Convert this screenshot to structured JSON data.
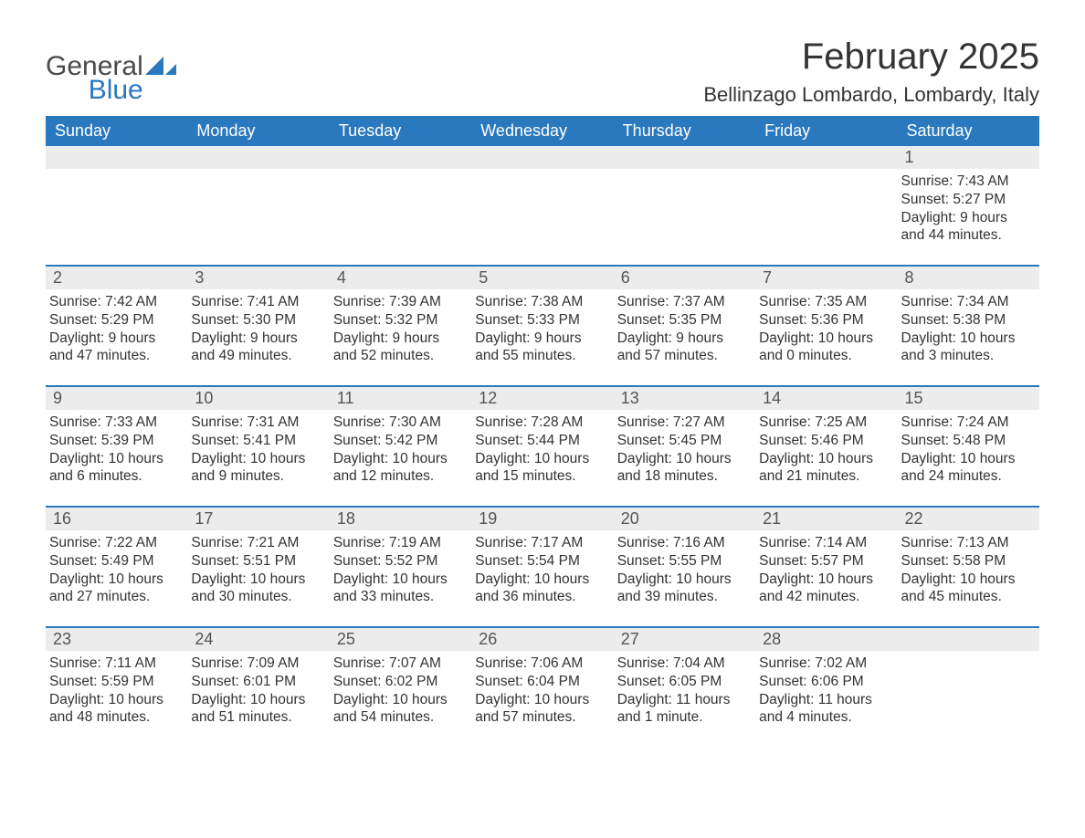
{
  "brand": {
    "general": "General",
    "blue": "Blue",
    "sail_color": "#2a78bd"
  },
  "title": "February 2025",
  "location": "Bellinzago Lombardo, Lombardy, Italy",
  "colors": {
    "header_bg": "#2a78bd",
    "header_text": "#ffffff",
    "band_bg": "#ececec",
    "week_border": "#2a78bd",
    "body_text": "#333333"
  },
  "days_of_week": [
    "Sunday",
    "Monday",
    "Tuesday",
    "Wednesday",
    "Thursday",
    "Friday",
    "Saturday"
  ],
  "labels": {
    "sunrise": "Sunrise:",
    "sunset": "Sunset:",
    "daylight": "Daylight:"
  },
  "weeks": [
    [
      null,
      null,
      null,
      null,
      null,
      null,
      {
        "n": "1",
        "sunrise": "7:43 AM",
        "sunset": "5:27 PM",
        "daylight": "9 hours and 44 minutes."
      }
    ],
    [
      {
        "n": "2",
        "sunrise": "7:42 AM",
        "sunset": "5:29 PM",
        "daylight": "9 hours and 47 minutes."
      },
      {
        "n": "3",
        "sunrise": "7:41 AM",
        "sunset": "5:30 PM",
        "daylight": "9 hours and 49 minutes."
      },
      {
        "n": "4",
        "sunrise": "7:39 AM",
        "sunset": "5:32 PM",
        "daylight": "9 hours and 52 minutes."
      },
      {
        "n": "5",
        "sunrise": "7:38 AM",
        "sunset": "5:33 PM",
        "daylight": "9 hours and 55 minutes."
      },
      {
        "n": "6",
        "sunrise": "7:37 AM",
        "sunset": "5:35 PM",
        "daylight": "9 hours and 57 minutes."
      },
      {
        "n": "7",
        "sunrise": "7:35 AM",
        "sunset": "5:36 PM",
        "daylight": "10 hours and 0 minutes."
      },
      {
        "n": "8",
        "sunrise": "7:34 AM",
        "sunset": "5:38 PM",
        "daylight": "10 hours and 3 minutes."
      }
    ],
    [
      {
        "n": "9",
        "sunrise": "7:33 AM",
        "sunset": "5:39 PM",
        "daylight": "10 hours and 6 minutes."
      },
      {
        "n": "10",
        "sunrise": "7:31 AM",
        "sunset": "5:41 PM",
        "daylight": "10 hours and 9 minutes."
      },
      {
        "n": "11",
        "sunrise": "7:30 AM",
        "sunset": "5:42 PM",
        "daylight": "10 hours and 12 minutes."
      },
      {
        "n": "12",
        "sunrise": "7:28 AM",
        "sunset": "5:44 PM",
        "daylight": "10 hours and 15 minutes."
      },
      {
        "n": "13",
        "sunrise": "7:27 AM",
        "sunset": "5:45 PM",
        "daylight": "10 hours and 18 minutes."
      },
      {
        "n": "14",
        "sunrise": "7:25 AM",
        "sunset": "5:46 PM",
        "daylight": "10 hours and 21 minutes."
      },
      {
        "n": "15",
        "sunrise": "7:24 AM",
        "sunset": "5:48 PM",
        "daylight": "10 hours and 24 minutes."
      }
    ],
    [
      {
        "n": "16",
        "sunrise": "7:22 AM",
        "sunset": "5:49 PM",
        "daylight": "10 hours and 27 minutes."
      },
      {
        "n": "17",
        "sunrise": "7:21 AM",
        "sunset": "5:51 PM",
        "daylight": "10 hours and 30 minutes."
      },
      {
        "n": "18",
        "sunrise": "7:19 AM",
        "sunset": "5:52 PM",
        "daylight": "10 hours and 33 minutes."
      },
      {
        "n": "19",
        "sunrise": "7:17 AM",
        "sunset": "5:54 PM",
        "daylight": "10 hours and 36 minutes."
      },
      {
        "n": "20",
        "sunrise": "7:16 AM",
        "sunset": "5:55 PM",
        "daylight": "10 hours and 39 minutes."
      },
      {
        "n": "21",
        "sunrise": "7:14 AM",
        "sunset": "5:57 PM",
        "daylight": "10 hours and 42 minutes."
      },
      {
        "n": "22",
        "sunrise": "7:13 AM",
        "sunset": "5:58 PM",
        "daylight": "10 hours and 45 minutes."
      }
    ],
    [
      {
        "n": "23",
        "sunrise": "7:11 AM",
        "sunset": "5:59 PM",
        "daylight": "10 hours and 48 minutes."
      },
      {
        "n": "24",
        "sunrise": "7:09 AM",
        "sunset": "6:01 PM",
        "daylight": "10 hours and 51 minutes."
      },
      {
        "n": "25",
        "sunrise": "7:07 AM",
        "sunset": "6:02 PM",
        "daylight": "10 hours and 54 minutes."
      },
      {
        "n": "26",
        "sunrise": "7:06 AM",
        "sunset": "6:04 PM",
        "daylight": "10 hours and 57 minutes."
      },
      {
        "n": "27",
        "sunrise": "7:04 AM",
        "sunset": "6:05 PM",
        "daylight": "11 hours and 1 minute."
      },
      {
        "n": "28",
        "sunrise": "7:02 AM",
        "sunset": "6:06 PM",
        "daylight": "11 hours and 4 minutes."
      },
      null
    ]
  ]
}
